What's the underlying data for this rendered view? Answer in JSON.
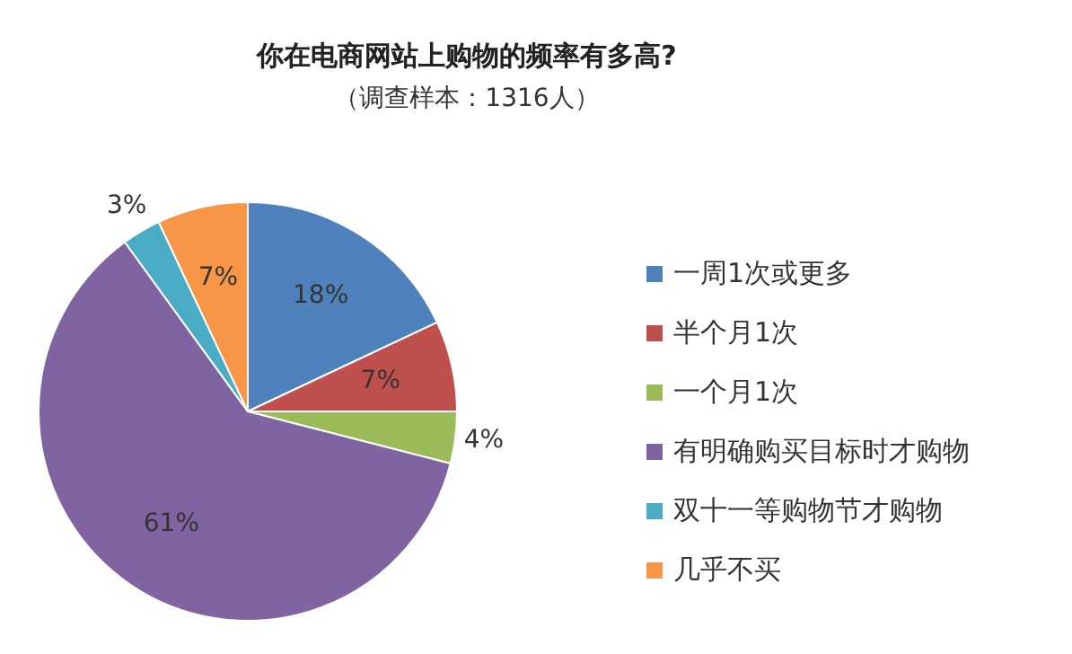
{
  "chart_data": {
    "type": "pie",
    "title": "你在电商网站上购物的频率有多高?",
    "subtitle": "（调查样本：1316人）",
    "categories": [
      "一周1次或更多",
      "半个月1次",
      "一个月1次",
      "有明确购买目标时才购物",
      "双十一等购物节才购物",
      "几乎不买"
    ],
    "values": [
      18,
      7,
      4,
      61,
      3,
      7
    ],
    "colors": [
      "#4f81bd",
      "#c0504d",
      "#9bbb59",
      "#8064a2",
      "#4bacc6",
      "#f79646"
    ],
    "value_labels": [
      "18%",
      "7%",
      "4%",
      "61%",
      "3%",
      "7%"
    ],
    "legend": "right"
  }
}
